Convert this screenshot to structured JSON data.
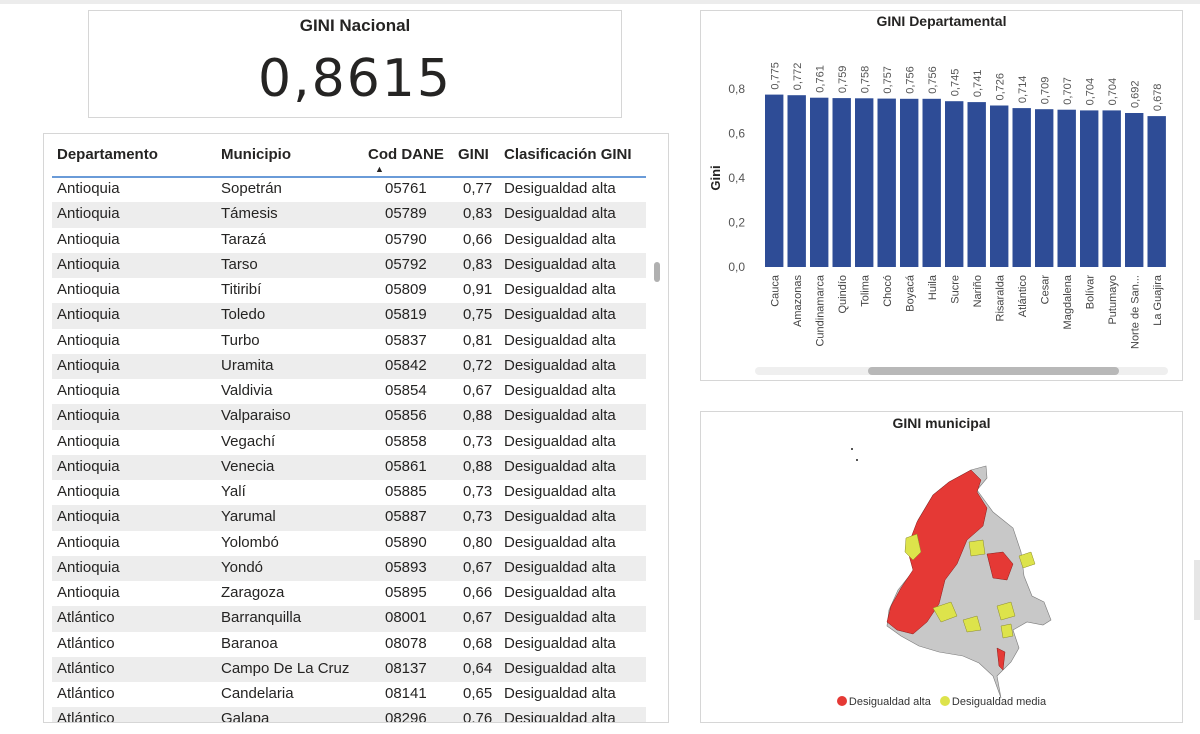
{
  "kpi": {
    "title": "GINI Nacional",
    "value": "0,8615"
  },
  "table": {
    "columns": [
      "Departamento",
      "Municipio",
      "Cod DANE",
      "GINI",
      "Clasificación GINI"
    ],
    "sort_icon": "sort-ascending-icon",
    "rows": [
      [
        "Antioquia",
        "Sopetrán",
        "05761",
        "0,77",
        "Desigualdad alta"
      ],
      [
        "Antioquia",
        "Támesis",
        "05789",
        "0,83",
        "Desigualdad alta"
      ],
      [
        "Antioquia",
        "Tarazá",
        "05790",
        "0,66",
        "Desigualdad alta"
      ],
      [
        "Antioquia",
        "Tarso",
        "05792",
        "0,83",
        "Desigualdad alta"
      ],
      [
        "Antioquia",
        "Titiribí",
        "05809",
        "0,91",
        "Desigualdad alta"
      ],
      [
        "Antioquia",
        "Toledo",
        "05819",
        "0,75",
        "Desigualdad alta"
      ],
      [
        "Antioquia",
        "Turbo",
        "05837",
        "0,81",
        "Desigualdad alta"
      ],
      [
        "Antioquia",
        "Uramita",
        "05842",
        "0,72",
        "Desigualdad alta"
      ],
      [
        "Antioquia",
        "Valdivia",
        "05854",
        "0,67",
        "Desigualdad alta"
      ],
      [
        "Antioquia",
        "Valparaiso",
        "05856",
        "0,88",
        "Desigualdad alta"
      ],
      [
        "Antioquia",
        "Vegachí",
        "05858",
        "0,73",
        "Desigualdad alta"
      ],
      [
        "Antioquia",
        "Venecia",
        "05861",
        "0,88",
        "Desigualdad alta"
      ],
      [
        "Antioquia",
        "Yalí",
        "05885",
        "0,73",
        "Desigualdad alta"
      ],
      [
        "Antioquia",
        "Yarumal",
        "05887",
        "0,73",
        "Desigualdad alta"
      ],
      [
        "Antioquia",
        "Yolombó",
        "05890",
        "0,80",
        "Desigualdad alta"
      ],
      [
        "Antioquia",
        "Yondó",
        "05893",
        "0,67",
        "Desigualdad alta"
      ],
      [
        "Antioquia",
        "Zaragoza",
        "05895",
        "0,66",
        "Desigualdad alta"
      ],
      [
        "Atlántico",
        "Barranquilla",
        "08001",
        "0,67",
        "Desigualdad alta"
      ],
      [
        "Atlántico",
        "Baranoa",
        "08078",
        "0,68",
        "Desigualdad alta"
      ],
      [
        "Atlántico",
        "Campo De La Cruz",
        "08137",
        "0,64",
        "Desigualdad alta"
      ],
      [
        "Atlántico",
        "Candelaria",
        "08141",
        "0,65",
        "Desigualdad alta"
      ],
      [
        "Atlántico",
        "Galapa",
        "08296",
        "0,76",
        "Desigualdad alta"
      ]
    ]
  },
  "chart_data": {
    "type": "bar",
    "title": "GINI Departamental",
    "xlabel": "",
    "ylabel": "Gini",
    "categories": [
      "Cauca",
      "Amazonas",
      "Cundinamarca",
      "Quindío",
      "Tolima",
      "Chocó",
      "Boyacá",
      "Huila",
      "Sucre",
      "Nariño",
      "Risaralda",
      "Atlántico",
      "Cesar",
      "Magdalena",
      "Bolívar",
      "Putumayo",
      "Norte de San...",
      "La Guajira"
    ],
    "values": [
      0.775,
      0.772,
      0.761,
      0.759,
      0.758,
      0.757,
      0.756,
      0.756,
      0.745,
      0.741,
      0.726,
      0.714,
      0.709,
      0.707,
      0.704,
      0.704,
      0.692,
      0.678
    ],
    "value_labels": [
      "0,775",
      "0,772",
      "0,761",
      "0,759",
      "0,758",
      "0,757",
      "0,756",
      "0,756",
      "0,745",
      "0,741",
      "0,726",
      "0,714",
      "0,709",
      "0,707",
      "0,704",
      "0,704",
      "0,692",
      "0,678"
    ],
    "yticks": [
      "0,0",
      "0,2",
      "0,4",
      "0,6",
      "0,8"
    ],
    "ylim": [
      0,
      0.8
    ],
    "color": "#2e4c96",
    "grid": false
  },
  "map": {
    "title": "GINI municipal",
    "legend": [
      {
        "label": "Desigualdad alta",
        "color": "#e53935"
      },
      {
        "label": "Desigualdad media",
        "color": "#dde34b"
      }
    ],
    "no_data_color": "#c8c8c8"
  }
}
